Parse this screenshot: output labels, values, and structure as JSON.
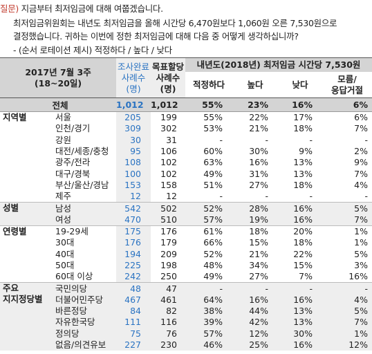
{
  "question": {
    "tag": "질문)",
    "lines": [
      "지금부터 최저임금에 대해 여쭙겠습니다.",
      "최저임금위원회는 내년도 최저임금을 올해 시간당 6,470원보다 1,060원 오른 7,530원으로",
      "결정했습니다. 귀하는 이번에 정한 최저임금에 대해 다음 중 어떻게 생각하십니까?",
      "- (순서 로테이션 제시) 적정하다 / 높다 / 낮다"
    ]
  },
  "header": {
    "period_line1": "2017년 7월 3주",
    "period_line2": "(18~20일)",
    "col1": [
      "조사완료",
      "사례수",
      "(명)"
    ],
    "col2": [
      "목표할당",
      "사례수",
      "(명)"
    ],
    "wage": "내년도(2018년) 최저임금 시간당 7,530원",
    "answers": [
      "적정하다",
      "높다",
      "낮다",
      "모름/",
      "응답거절"
    ]
  },
  "total": {
    "label": "전체",
    "n1": "1,012",
    "n2": "1,012",
    "p": [
      "55%",
      "23%",
      "16%",
      "6%"
    ]
  },
  "groups": [
    {
      "label": [
        "지역별"
      ],
      "shade": false,
      "rows": [
        {
          "cat": "서울",
          "n1": "205",
          "n2": "199",
          "p": [
            "55%",
            "22%",
            "17%",
            "6%"
          ]
        },
        {
          "cat": "인천/경기",
          "n1": "309",
          "n2": "302",
          "p": [
            "53%",
            "21%",
            "18%",
            "7%"
          ]
        },
        {
          "cat": "강원",
          "n1": "30",
          "n2": "31",
          "p": [
            "-",
            "-",
            "-",
            "-"
          ]
        },
        {
          "cat": "대전/세종/충청",
          "n1": "95",
          "n2": "106",
          "p": [
            "60%",
            "30%",
            "9%",
            "2%"
          ]
        },
        {
          "cat": "광주/전라",
          "n1": "108",
          "n2": "102",
          "p": [
            "63%",
            "16%",
            "13%",
            "9%"
          ]
        },
        {
          "cat": "대구/경북",
          "n1": "100",
          "n2": "102",
          "p": [
            "49%",
            "31%",
            "13%",
            "7%"
          ]
        },
        {
          "cat": "부산/울산/경남",
          "n1": "153",
          "n2": "158",
          "p": [
            "51%",
            "27%",
            "18%",
            "4%"
          ]
        },
        {
          "cat": "제주",
          "n1": "12",
          "n2": "12",
          "p": [
            "-",
            "-",
            "-",
            "-"
          ]
        }
      ]
    },
    {
      "label": [
        "성별"
      ],
      "shade": true,
      "rows": [
        {
          "cat": "남성",
          "n1": "542",
          "n2": "502",
          "p": [
            "52%",
            "28%",
            "16%",
            "5%"
          ]
        },
        {
          "cat": "여성",
          "n1": "470",
          "n2": "510",
          "p": [
            "57%",
            "19%",
            "16%",
            "7%"
          ]
        }
      ]
    },
    {
      "label": [
        "연령별"
      ],
      "shade": false,
      "rows": [
        {
          "cat": "19-29세",
          "n1": "175",
          "n2": "176",
          "p": [
            "61%",
            "18%",
            "20%",
            "1%"
          ]
        },
        {
          "cat": "30대",
          "n1": "176",
          "n2": "179",
          "p": [
            "66%",
            "15%",
            "18%",
            "1%"
          ]
        },
        {
          "cat": "40대",
          "n1": "194",
          "n2": "209",
          "p": [
            "52%",
            "21%",
            "22%",
            "5%"
          ]
        },
        {
          "cat": "50대",
          "n1": "225",
          "n2": "198",
          "p": [
            "48%",
            "34%",
            "15%",
            "3%"
          ]
        },
        {
          "cat": "60대 이상",
          "n1": "242",
          "n2": "250",
          "p": [
            "49%",
            "27%",
            "7%",
            "16%"
          ]
        }
      ]
    },
    {
      "label": [
        "주요",
        "지지정당별"
      ],
      "shade": true,
      "rows": [
        {
          "cat": "국민의당",
          "n1": "48",
          "n2": "47",
          "p": [
            "-",
            "-",
            "-",
            "-"
          ]
        },
        {
          "cat": "더불어민주당",
          "n1": "467",
          "n2": "461",
          "p": [
            "64%",
            "16%",
            "16%",
            "4%"
          ]
        },
        {
          "cat": "바른정당",
          "n1": "84",
          "n2": "82",
          "p": [
            "38%",
            "44%",
            "13%",
            "5%"
          ]
        },
        {
          "cat": "자유한국당",
          "n1": "111",
          "n2": "116",
          "p": [
            "39%",
            "42%",
            "13%",
            "7%"
          ]
        },
        {
          "cat": "정의당",
          "n1": "75",
          "n2": "76",
          "p": [
            "57%",
            "12%",
            "30%",
            "1%"
          ]
        },
        {
          "cat": "없음/의견유보",
          "n1": "227",
          "n2": "230",
          "p": [
            "46%",
            "25%",
            "16%",
            "12%"
          ]
        }
      ]
    }
  ]
}
